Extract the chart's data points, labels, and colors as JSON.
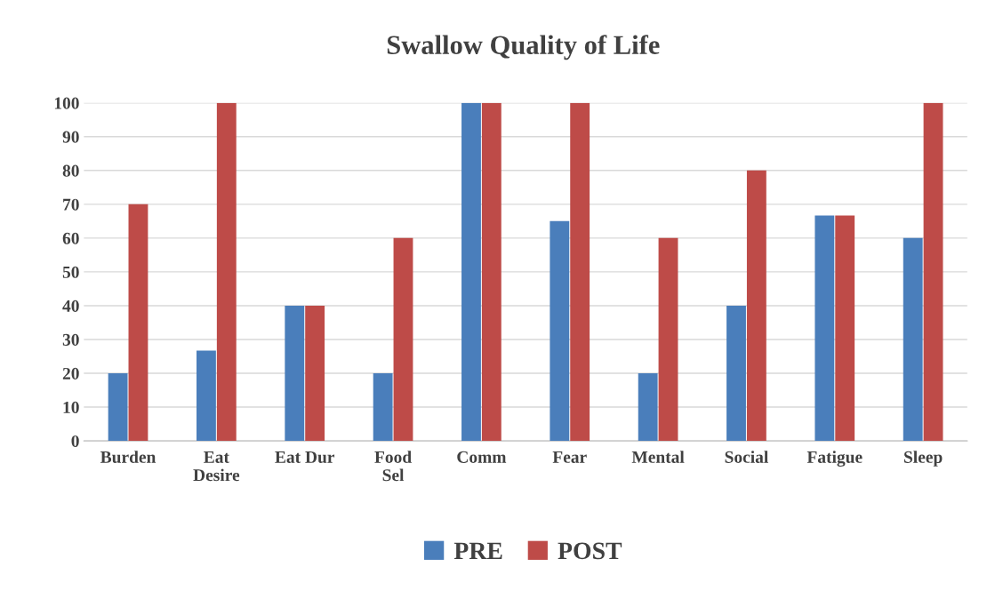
{
  "chart_data": {
    "type": "bar",
    "title": "Swallow Quality of Life",
    "categories": [
      "Burden",
      "Eat\nDesire",
      "Eat Dur",
      "Food\nSel",
      "Comm",
      "Fear",
      "Mental",
      "Social",
      "Fatigue",
      "Sleep"
    ],
    "series": [
      {
        "name": "PRE",
        "color": "#4a7ebb",
        "values": [
          20,
          26.7,
          40,
          20,
          100,
          65,
          20,
          40,
          66.7,
          60
        ]
      },
      {
        "name": "POST",
        "color": "#be4b48",
        "values": [
          70,
          100,
          40,
          60,
          100,
          100,
          60,
          80,
          66.7,
          100
        ]
      }
    ],
    "ylim": [
      0,
      100
    ],
    "yticks": [
      0,
      10,
      20,
      30,
      40,
      50,
      60,
      70,
      80,
      90,
      100
    ],
    "grid": "y",
    "legend": "bottom"
  }
}
